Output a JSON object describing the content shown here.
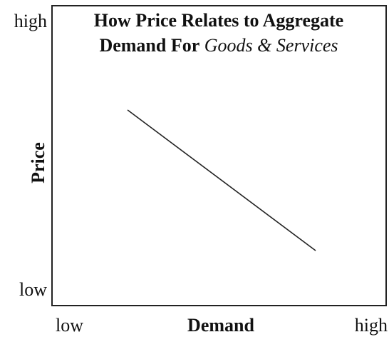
{
  "title": {
    "line1": "How Price Relates to Aggregate",
    "line2_bold": "Demand For",
    "line2_italic": "Goods & Services"
  },
  "y_axis": {
    "label": "Price",
    "high": "high",
    "low": "low"
  },
  "x_axis": {
    "label": "Demand",
    "low": "low",
    "high": "high"
  }
}
